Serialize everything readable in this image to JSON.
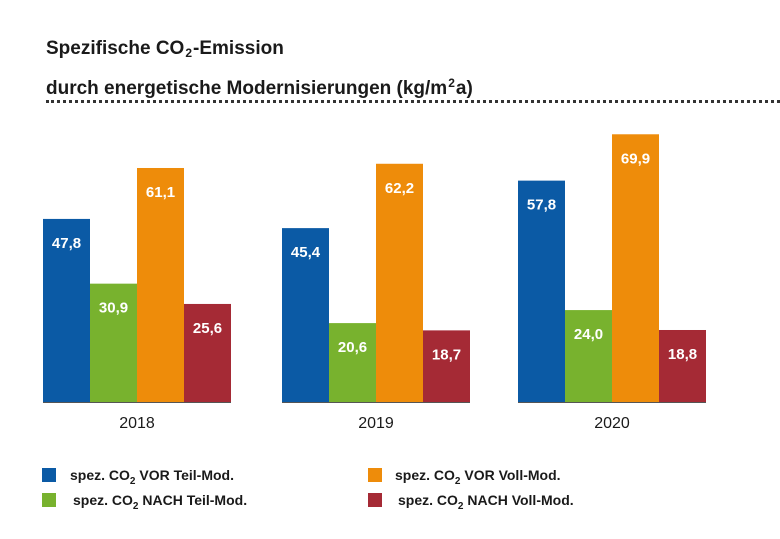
{
  "title": {
    "line1_a": "Spezifische CO",
    "line1_sub": "2",
    "line1_b": "-Emission",
    "line2_a": "durch energetische Modernisierungen (kg/m",
    "line2_sup": "2",
    "line2_b": "a)"
  },
  "chart_data": {
    "type": "bar",
    "title": "Spezifische CO2-Emission durch energetische Modernisierungen (kg/m2a)",
    "categories": [
      "2018",
      "2019",
      "2020"
    ],
    "value_labels": [
      [
        "47,8",
        "30,9",
        "61,1",
        "25,6"
      ],
      [
        "45,4",
        "20,6",
        "62,2",
        "18,7"
      ],
      [
        "57,8",
        "24,0",
        "69,9",
        "18,8"
      ]
    ],
    "series": [
      {
        "name": "spez. CO2 VOR Teil-Mod.",
        "color": "#0b5aa5",
        "values": [
          47.8,
          45.4,
          57.8
        ]
      },
      {
        "name": "spez. CO2 NACH Teil-Mod.",
        "color": "#78b22e",
        "values": [
          30.9,
          20.6,
          24.0
        ]
      },
      {
        "name": "spez. CO2 VOR Voll-Mod.",
        "color": "#ee8c0a",
        "values": [
          61.1,
          62.2,
          69.9
        ]
      },
      {
        "name": "spez. CO2 NACH Voll-Mod.",
        "color": "#a52a35",
        "values": [
          25.6,
          18.7,
          18.8
        ]
      }
    ],
    "ylim": [
      0,
      70
    ],
    "grid": false,
    "legend_position": "bottom"
  },
  "legend": [
    {
      "pre": "spez. CO",
      "sub": "2",
      "post": " VOR Teil-Mod."
    },
    {
      "pre": "spez. CO",
      "sub": "2",
      "post": " NACH Teil-Mod."
    },
    {
      "pre": "spez. CO",
      "sub": "2",
      "post": " VOR Voll-Mod."
    },
    {
      "pre": "spez. CO",
      "sub": "2",
      "post": " NACH Voll-Mod."
    }
  ]
}
